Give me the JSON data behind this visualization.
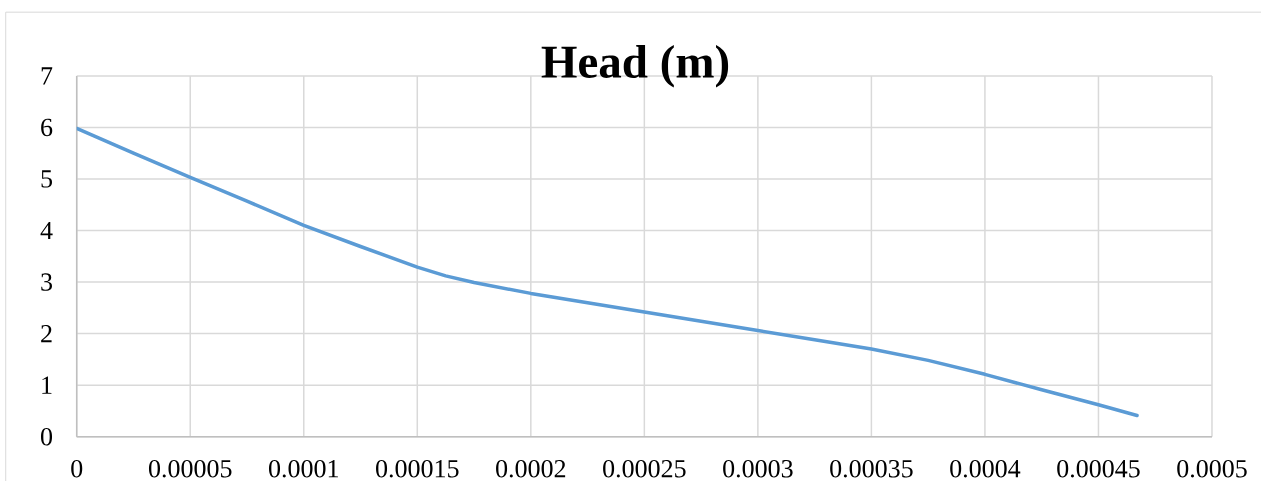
{
  "chart_data": {
    "type": "line",
    "title": "Head (m)",
    "x": [
      0,
      2.5e-05,
      5e-05,
      7.5e-05,
      0.0001,
      0.000125,
      0.00015,
      0.0001625,
      0.000175,
      0.0002,
      0.000225,
      0.00025,
      0.000275,
      0.0003,
      0.000325,
      0.00035,
      0.000375,
      0.0004,
      0.000425,
      0.00045,
      0.000467
    ],
    "values": [
      5.98,
      5.5,
      5.03,
      4.57,
      4.1,
      3.69,
      3.29,
      3.12,
      2.99,
      2.78,
      2.6,
      2.42,
      2.24,
      2.06,
      1.88,
      1.7,
      1.48,
      1.21,
      0.91,
      0.62,
      0.41
    ],
    "color": "#5b9bd5",
    "xlim": [
      0,
      0.0005
    ],
    "xticks": [
      0,
      {
        "value": 5e-05,
        "label": "0.00005"
      },
      0.0001,
      0.00015,
      0.0002,
      0.00025,
      0.0003,
      0.00035,
      0.0004,
      0.00045,
      0.0005
    ],
    "ylim": [
      0,
      7
    ],
    "yticks": [
      0,
      1,
      2,
      3,
      4,
      5,
      6,
      7
    ],
    "grid": true
  }
}
